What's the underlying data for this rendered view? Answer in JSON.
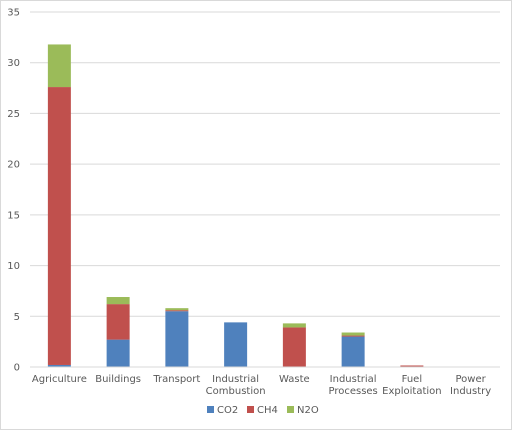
{
  "chart_data": {
    "type": "bar",
    "stacked": true,
    "categories": [
      [
        "Agriculture"
      ],
      [
        "Buildings"
      ],
      [
        "Transport"
      ],
      [
        "Industrial",
        "Combustion"
      ],
      [
        "Waste"
      ],
      [
        "Industrial",
        "Processes"
      ],
      [
        "Fuel",
        "Exploitation"
      ],
      [
        "Power",
        "Industry"
      ]
    ],
    "series": [
      {
        "name": "CO2",
        "color": "#4f81bd",
        "values": [
          0.2,
          2.7,
          5.5,
          4.4,
          0.0,
          3.0,
          0.0,
          0.0
        ]
      },
      {
        "name": "CH4",
        "color": "#c0504d",
        "values": [
          27.4,
          3.5,
          0.1,
          0.0,
          3.9,
          0.1,
          0.15,
          0.0
        ]
      },
      {
        "name": "N2O",
        "color": "#9bbb59",
        "values": [
          4.2,
          0.7,
          0.2,
          0.0,
          0.4,
          0.3,
          0.0,
          0.0
        ]
      }
    ],
    "ylim": [
      0,
      35
    ],
    "yticks": [
      0,
      5,
      10,
      15,
      20,
      25,
      30,
      35
    ],
    "grid": true,
    "legend_position": "bottom",
    "title": "",
    "xlabel": "",
    "ylabel": ""
  }
}
